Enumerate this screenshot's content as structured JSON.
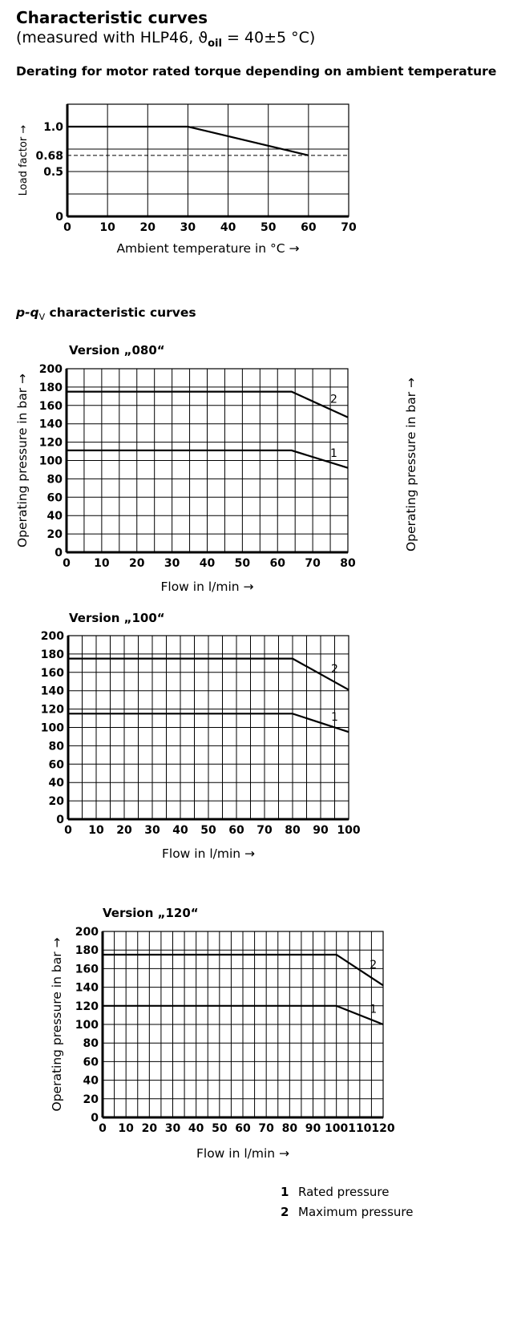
{
  "header": {
    "title": "Characteristic curves",
    "subtitle_prefix": "(measured with HLP46, ϑ",
    "subtitle_sub": "oil",
    "subtitle_suffix": " = 40±5 °C)"
  },
  "section1": {
    "title": "Derating for motor rated torque depending on ambient temperature"
  },
  "section2": {
    "title_p": "p-q",
    "title_sub": "V",
    "title_rest": " characteristic curves"
  },
  "right_axis_label": "Operating pressure in bar →",
  "legend": [
    {
      "num": "1",
      "text": "Rated pressure"
    },
    {
      "num": "2",
      "text": "Maximum pressure"
    }
  ],
  "colors": {
    "line": "#000000",
    "grid": "#000000",
    "background": "#ffffff"
  },
  "chart_data": [
    {
      "id": "derating",
      "type": "line",
      "title": "",
      "xlabel": "Ambient temperature in °C →",
      "ylabel": "Load factor →",
      "xlim": [
        0,
        70
      ],
      "ylim": [
        0,
        1.25
      ],
      "xticks": [
        0,
        10,
        20,
        30,
        40,
        50,
        60,
        70
      ],
      "yticks": [
        {
          "value": 0,
          "label": "0"
        },
        {
          "value": 0.5,
          "label": "0.5"
        },
        {
          "value": 0.68,
          "label": "0.68"
        },
        {
          "value": 1.0,
          "label": "1.0"
        }
      ],
      "grid": true,
      "hgrid": [
        0.25,
        0.5,
        0.75,
        1.0
      ],
      "series": [
        {
          "x": [
            0,
            30,
            60
          ],
          "y": [
            1.0,
            1.0,
            0.68
          ],
          "style": "solid"
        }
      ],
      "reference_lines": [
        {
          "y": 0.68,
          "style": "dashed"
        }
      ]
    },
    {
      "id": "v080",
      "type": "line",
      "title": "Version „080“",
      "xlabel": "Flow in l/min →",
      "ylabel": "Operating pressure in bar →",
      "xlim": [
        0,
        80
      ],
      "ylim": [
        0,
        200
      ],
      "xticks": [
        0,
        10,
        20,
        30,
        40,
        50,
        60,
        70,
        80
      ],
      "yticks": [
        0,
        20,
        40,
        60,
        80,
        100,
        120,
        140,
        160,
        180,
        200
      ],
      "grid": true,
      "series": [
        {
          "name": "1",
          "x": [
            0,
            64,
            80
          ],
          "y": [
            111,
            111,
            92
          ]
        },
        {
          "name": "2",
          "x": [
            0,
            64,
            80
          ],
          "y": [
            175,
            175,
            147
          ]
        }
      ]
    },
    {
      "id": "v100",
      "type": "line",
      "title": "Version „100“",
      "xlabel": "Flow in l/min →",
      "ylabel": "",
      "xlim": [
        0,
        100
      ],
      "ylim": [
        0,
        200
      ],
      "xticks": [
        0,
        10,
        20,
        30,
        40,
        50,
        60,
        70,
        80,
        90,
        100
      ],
      "yticks": [
        0,
        20,
        40,
        60,
        80,
        100,
        120,
        140,
        160,
        180,
        200
      ],
      "grid": true,
      "series": [
        {
          "name": "1",
          "x": [
            0,
            80,
            100
          ],
          "y": [
            115,
            115,
            95
          ]
        },
        {
          "name": "2",
          "x": [
            0,
            80,
            100
          ],
          "y": [
            175,
            175,
            141
          ]
        }
      ]
    },
    {
      "id": "v120",
      "type": "line",
      "title": "Version „120“",
      "xlabel": "Flow in l/min →",
      "ylabel": "Operating pressure in bar →",
      "xlim": [
        0,
        120
      ],
      "ylim": [
        0,
        200
      ],
      "xticks": [
        0,
        10,
        20,
        30,
        40,
        50,
        60,
        70,
        80,
        90,
        100,
        110,
        120
      ],
      "yticks": [
        0,
        20,
        40,
        60,
        80,
        100,
        120,
        140,
        160,
        180,
        200
      ],
      "grid": true,
      "series": [
        {
          "name": "1",
          "x": [
            0,
            100,
            120
          ],
          "y": [
            120,
            120,
            100
          ]
        },
        {
          "name": "2",
          "x": [
            0,
            100,
            120
          ],
          "y": [
            175,
            175,
            142
          ]
        }
      ]
    }
  ]
}
